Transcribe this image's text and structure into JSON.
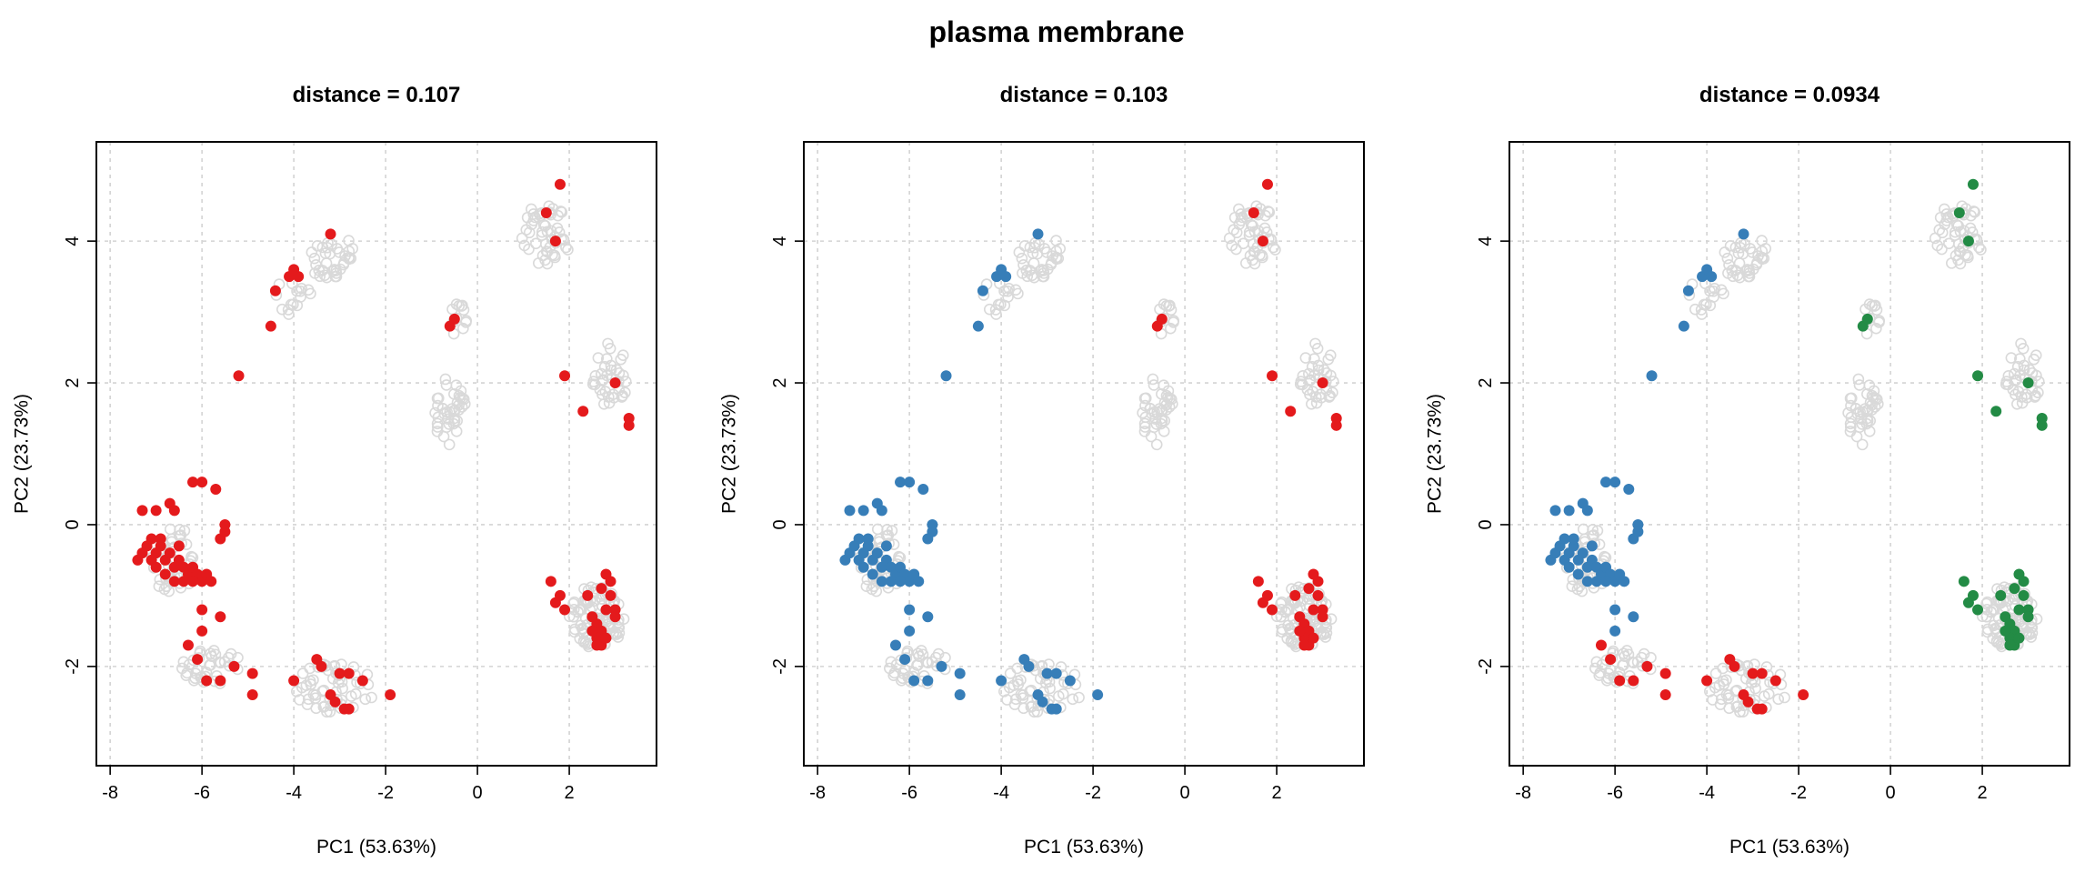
{
  "figure_title": "plasma membrane",
  "colors": {
    "background_point": "#d9d9d9",
    "red": "#e41a1c",
    "blue": "#377eb8",
    "green": "#238b45",
    "grid": "#d3d3d3"
  },
  "chart_data": [
    {
      "type": "scatter",
      "title": "distance =  0.107",
      "xlabel": "PC1 (53.63%)",
      "ylabel": "PC2 (23.73%)",
      "xlim": [
        -8.3,
        3.9
      ],
      "ylim": [
        -3.4,
        5.4
      ],
      "xticks": [
        -8,
        -6,
        -4,
        -2,
        0,
        2
      ],
      "yticks": [
        -2,
        0,
        2,
        4
      ],
      "grid": true,
      "series": [
        {
          "name": "",
          "color": "#e41a1c",
          "points": "all_markers"
        }
      ]
    },
    {
      "type": "scatter",
      "title": "distance =  0.103",
      "xlabel": "PC1 (53.63%)",
      "ylabel": "PC2 (23.73%)",
      "xlim": [
        -8.3,
        3.9
      ],
      "ylim": [
        -3.4,
        5.4
      ],
      "xticks": [
        -8,
        -6,
        -4,
        -2,
        0,
        2
      ],
      "yticks": [
        -2,
        0,
        2,
        4
      ],
      "grid": true,
      "series": [
        {
          "name": "",
          "color": "#377eb8",
          "points": "left_markers"
        },
        {
          "name": "",
          "color": "#e41a1c",
          "points": "right_markers"
        }
      ]
    },
    {
      "type": "scatter",
      "title": "distance =  0.0934",
      "xlabel": "PC1 (53.63%)",
      "ylabel": "PC2 (23.73%)",
      "xlim": [
        -8.3,
        3.9
      ],
      "ylim": [
        -3.4,
        5.4
      ],
      "xticks": [
        -8,
        -6,
        -4,
        -2,
        0,
        2
      ],
      "yticks": [
        -2,
        0,
        2,
        4
      ],
      "grid": true,
      "series": [
        {
          "name": "",
          "color": "#377eb8",
          "points": "left_upper_markers"
        },
        {
          "name": "",
          "color": "#e41a1c",
          "points": "bottom_markers"
        },
        {
          "name": "",
          "color": "#238b45",
          "points": "right_markers"
        }
      ]
    }
  ],
  "markers": {
    "left_upper": [
      [
        -7.3,
        0.2
      ],
      [
        -7.0,
        0.2
      ],
      [
        -6.7,
        0.3
      ],
      [
        -6.6,
        0.2
      ],
      [
        -6.2,
        0.6
      ],
      [
        -6.0,
        0.6
      ],
      [
        -5.7,
        0.5
      ],
      [
        -5.5,
        0.0
      ],
      [
        -5.6,
        -0.2
      ],
      [
        -5.5,
        -0.1
      ],
      [
        -7.4,
        -0.5
      ],
      [
        -7.3,
        -0.4
      ],
      [
        -7.2,
        -0.3
      ],
      [
        -7.1,
        -0.5
      ],
      [
        -7.0,
        -0.4
      ],
      [
        -6.9,
        -0.3
      ],
      [
        -6.8,
        -0.5
      ],
      [
        -6.7,
        -0.4
      ],
      [
        -6.6,
        -0.6
      ],
      [
        -6.5,
        -0.5
      ],
      [
        -6.4,
        -0.6
      ],
      [
        -6.3,
        -0.7
      ],
      [
        -6.2,
        -0.6
      ],
      [
        -6.1,
        -0.7
      ],
      [
        -6.0,
        -0.8
      ],
      [
        -6.6,
        -0.8
      ],
      [
        -6.4,
        -0.8
      ],
      [
        -6.8,
        -0.7
      ],
      [
        -7.0,
        -0.6
      ],
      [
        -6.2,
        -0.8
      ],
      [
        -6.9,
        -0.2
      ],
      [
        -7.1,
        -0.2
      ],
      [
        -6.5,
        -0.3
      ],
      [
        -5.9,
        -0.7
      ],
      [
        -5.8,
        -0.8
      ],
      [
        -6.0,
        -1.2
      ],
      [
        -5.6,
        -1.3
      ],
      [
        -6.0,
        -1.5
      ],
      [
        -5.2,
        2.1
      ],
      [
        -4.5,
        2.8
      ],
      [
        -4.4,
        3.3
      ],
      [
        -4.1,
        3.5
      ],
      [
        -4.0,
        3.6
      ],
      [
        -3.9,
        3.5
      ],
      [
        -3.2,
        4.1
      ],
      [
        -6.3,
        -1.7
      ],
      [
        -6.1,
        -1.9
      ],
      [
        -5.9,
        -2.2
      ],
      [
        -5.6,
        -2.2
      ],
      [
        -5.3,
        -2.0
      ],
      [
        -4.9,
        -2.1
      ],
      [
        -4.9,
        -2.4
      ],
      [
        -4.0,
        -2.2
      ],
      [
        -3.5,
        -1.9
      ],
      [
        -3.4,
        -2.0
      ],
      [
        -3.2,
        -2.4
      ],
      [
        -3.1,
        -2.5
      ],
      [
        -2.9,
        -2.6
      ],
      [
        -2.8,
        -2.6
      ],
      [
        -3.0,
        -2.1
      ],
      [
        -2.8,
        -2.1
      ],
      [
        -2.5,
        -2.2
      ],
      [
        -1.9,
        -2.4
      ]
    ],
    "right_cluster": [
      [
        1.5,
        4.4
      ],
      [
        1.8,
        4.8
      ],
      [
        1.7,
        4.0
      ],
      [
        -0.6,
        2.8
      ],
      [
        -0.5,
        2.9
      ],
      [
        1.9,
        2.1
      ],
      [
        2.3,
        1.6
      ],
      [
        3.0,
        2.0
      ],
      [
        3.3,
        1.4
      ],
      [
        3.3,
        1.5
      ],
      [
        1.6,
        -0.8
      ],
      [
        1.7,
        -1.1
      ],
      [
        1.8,
        -1.0
      ],
      [
        1.9,
        -1.2
      ],
      [
        2.4,
        -1.0
      ],
      [
        2.5,
        -1.3
      ],
      [
        2.6,
        -1.4
      ],
      [
        2.7,
        -1.5
      ],
      [
        2.8,
        -1.2
      ],
      [
        2.9,
        -1.0
      ],
      [
        3.0,
        -1.2
      ],
      [
        2.7,
        -0.9
      ],
      [
        2.8,
        -0.7
      ],
      [
        2.9,
        -0.8
      ],
      [
        2.6,
        -1.6
      ],
      [
        2.7,
        -1.7
      ],
      [
        2.8,
        -1.6
      ],
      [
        2.6,
        -1.7
      ],
      [
        2.5,
        -1.5
      ],
      [
        3.0,
        -1.3
      ]
    ]
  }
}
